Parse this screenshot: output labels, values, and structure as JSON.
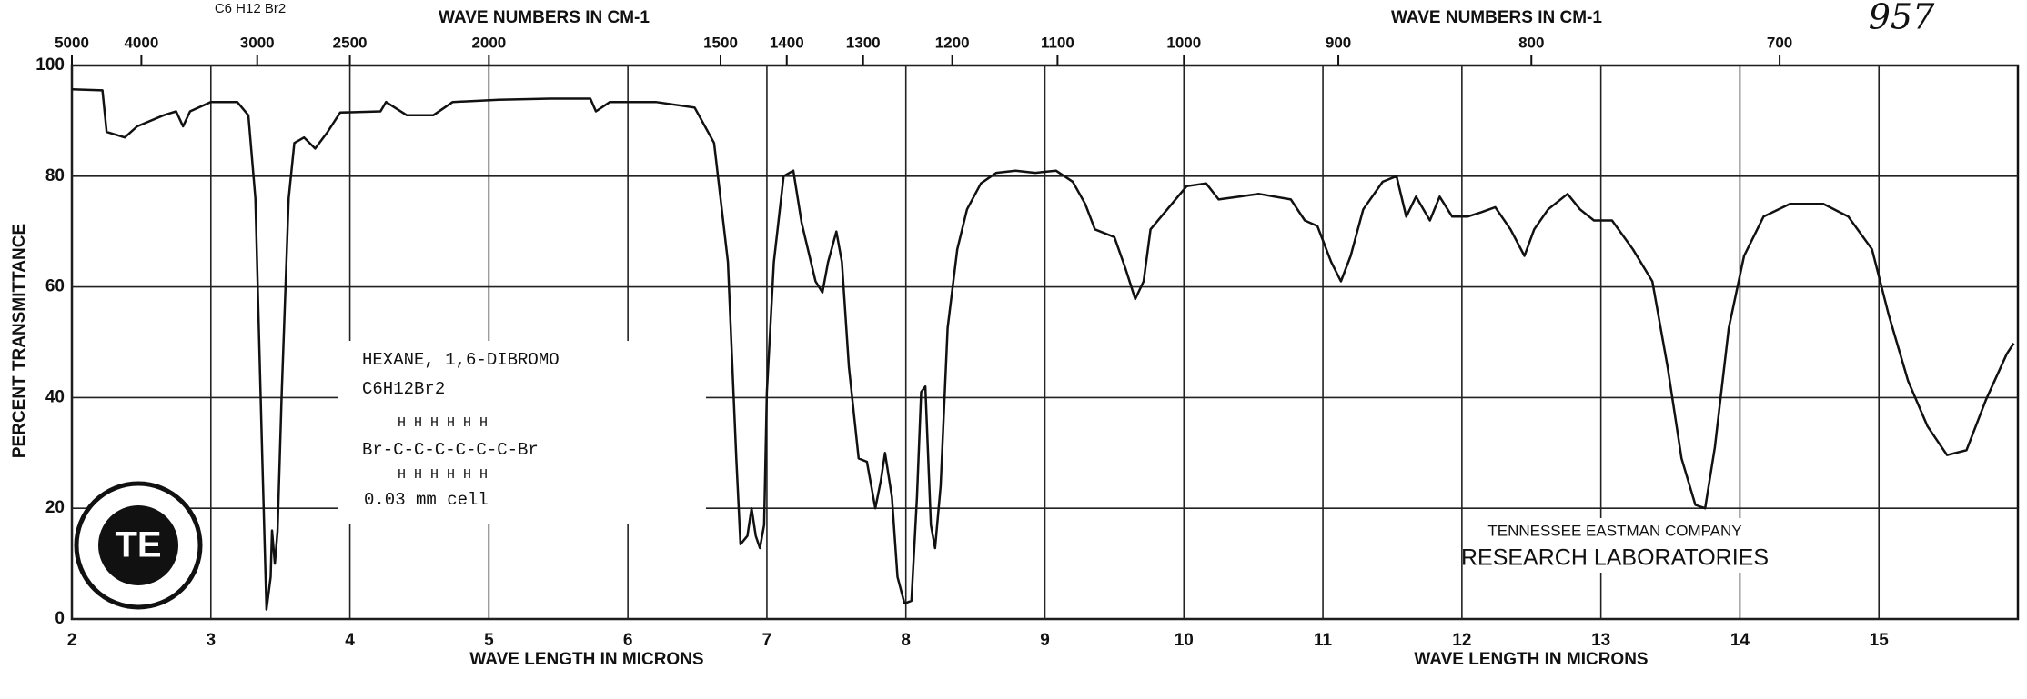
{
  "chart_data": {
    "type": "line",
    "top_label": "C6 H12 Br2",
    "sheet_number": "957",
    "top_axis_label": "WAVE NUMBERS IN CM-1",
    "xlabel": "WAVE LENGTH IN MICRONS",
    "ylabel": "PERCENT TRANSMITTANCE",
    "sample": {
      "name": "HEXANE, 1,6-DIBROMO",
      "formula": "C6H12Br2",
      "structure": [
        "H  H  H  H  H  H",
        "Br-C-C-C-C-C-C-Br",
        "H  H  H  H  H  H"
      ],
      "cell": "0.03 mm cell"
    },
    "company": "TENNESSEE EASTMAN COMPANY",
    "lab": "RESEARCH LABORATORIES",
    "logo": "TE",
    "color": "#111111",
    "grid": true,
    "xlim": [
      2,
      16
    ],
    "xticks": [
      2,
      3,
      4,
      5,
      6,
      7,
      8,
      9,
      10,
      11,
      12,
      13,
      14,
      15
    ],
    "ylim": [
      0,
      100
    ],
    "yticks": [
      0,
      20,
      40,
      60,
      80,
      100
    ],
    "x2ticks": [
      5000,
      4000,
      3000,
      2500,
      2000,
      1500,
      1400,
      1300,
      1200,
      1100,
      1000,
      900,
      800,
      700
    ],
    "x": [
      2.0,
      2.22,
      2.25,
      2.38,
      2.47,
      2.66,
      2.75,
      2.8,
      2.85,
      3.0,
      3.19,
      3.27,
      3.32,
      3.37,
      3.4,
      3.43,
      3.44,
      3.46,
      3.48,
      3.51,
      3.56,
      3.6,
      3.67,
      3.75,
      3.84,
      3.93,
      4.22,
      4.26,
      4.41,
      4.6,
      4.74,
      5.07,
      5.44,
      5.73,
      5.77,
      5.87,
      6.2,
      6.48,
      6.62,
      6.72,
      6.78,
      6.81,
      6.86,
      6.89,
      6.92,
      6.95,
      6.98,
      7.0,
      7.05,
      7.12,
      7.19,
      7.25,
      7.35,
      7.4,
      7.44,
      7.5,
      7.54,
      7.59,
      7.66,
      7.72,
      7.78,
      7.82,
      7.85,
      7.9,
      7.94,
      7.99,
      8.04,
      8.08,
      8.11,
      8.14,
      8.18,
      8.21,
      8.25,
      8.3,
      8.37,
      8.44,
      8.54,
      8.65,
      8.79,
      8.93,
      9.08,
      9.2,
      9.29,
      9.36,
      9.5,
      9.58,
      9.65,
      9.71,
      9.76,
      9.88,
      10.02,
      10.16,
      10.25,
      10.4,
      10.54,
      10.77,
      10.87,
      10.96,
      11.06,
      11.13,
      11.2,
      11.29,
      11.43,
      11.53,
      11.6,
      11.67,
      11.77,
      11.84,
      11.93,
      12.04,
      12.14,
      12.24,
      12.35,
      12.45,
      12.52,
      12.62,
      12.76,
      12.85,
      12.95,
      13.08,
      13.23,
      13.37,
      13.48,
      13.58,
      13.68,
      13.75,
      13.82,
      13.92,
      14.03,
      14.17,
      14.36,
      14.6,
      14.78,
      14.95,
      15.07,
      15.21,
      15.35,
      15.49,
      15.63,
      15.77,
      15.92,
      15.97
    ],
    "values": [
      95.7,
      95.5,
      88,
      87,
      89,
      91,
      91.7,
      89,
      91.7,
      93.4,
      93.4,
      91,
      76,
      29,
      1.7,
      7.6,
      16,
      10,
      16,
      41,
      76,
      86,
      87,
      85,
      88,
      91.5,
      91.7,
      93.4,
      91,
      91,
      93.4,
      93.8,
      94,
      94,
      91.7,
      93.4,
      93.4,
      92.4,
      86,
      64.5,
      29,
      13.5,
      15,
      20,
      15,
      12.8,
      17,
      41,
      64.5,
      80,
      81,
      71.6,
      61,
      59,
      64.5,
      70,
      64.5,
      45.5,
      29,
      28.4,
      20,
      25,
      30,
      22,
      7.6,
      2.8,
      3.3,
      22,
      41,
      42,
      17,
      12.8,
      24,
      52.6,
      66.8,
      74,
      78.7,
      80.6,
      81,
      80.6,
      81,
      79,
      75,
      70.4,
      69,
      63.3,
      57.8,
      61,
      70.4,
      74,
      78.2,
      78.7,
      75.8,
      76.3,
      76.8,
      75.8,
      72,
      71,
      64.5,
      61,
      65.6,
      74,
      79,
      80,
      72.7,
      76.3,
      72,
      76.3,
      72.7,
      72.7,
      73.5,
      74.4,
      70.4,
      65.6,
      70.4,
      74,
      76.8,
      74,
      72,
      72,
      66.8,
      61,
      45.5,
      29,
      20.6,
      20,
      31,
      52.6,
      65.6,
      72.7,
      75,
      75,
      72.7,
      66.8,
      55,
      43,
      34.8,
      29.6,
      30.5,
      39.6,
      47.9,
      49.8
    ]
  }
}
